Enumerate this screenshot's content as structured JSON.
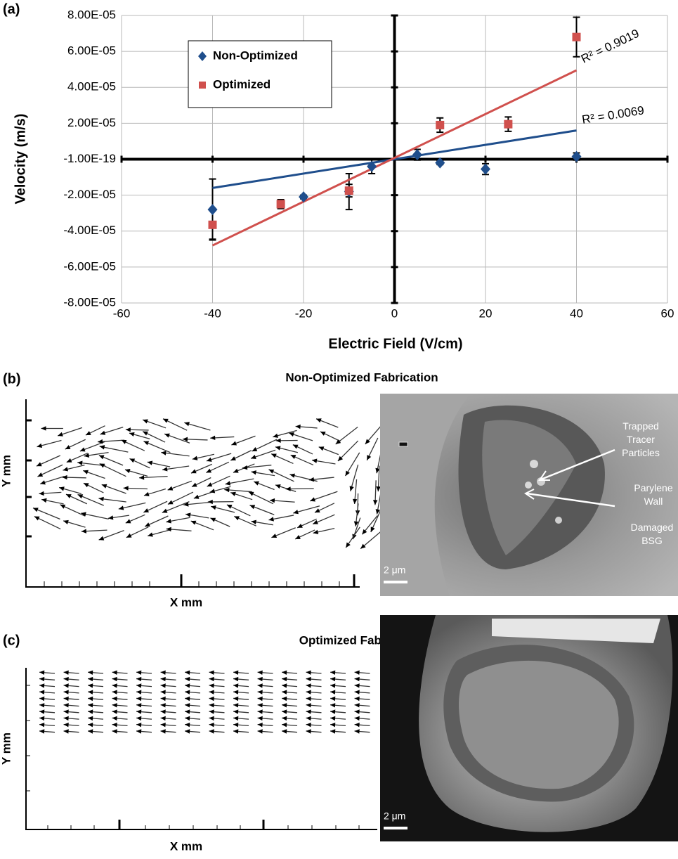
{
  "chart_data": {
    "type": "scatter",
    "panel": "(a)",
    "xlabel": "Electric Field (V/cm)",
    "ylabel": "Velocity (m/s)",
    "xlim": [
      -60,
      60
    ],
    "xticks": [
      -60,
      -40,
      -20,
      0,
      20,
      40,
      60
    ],
    "ylim": [
      -8e-05,
      8e-05
    ],
    "yticks": [
      {
        "value": -8e-05,
        "label": "-8.00E-05"
      },
      {
        "value": -6e-05,
        "label": "-6.00E-05"
      },
      {
        "value": -4e-05,
        "label": "-4.00E-05"
      },
      {
        "value": -2e-05,
        "label": "-2.00E-05"
      },
      {
        "value": -1e-19,
        "label": "-1.00E-19"
      },
      {
        "value": 2e-05,
        "label": "2.00E-05"
      },
      {
        "value": 4e-05,
        "label": "4.00E-05"
      },
      {
        "value": 6e-05,
        "label": "6.00E-05"
      },
      {
        "value": 8e-05,
        "label": "8.00E-05"
      }
    ],
    "grid": true,
    "legend": "upper left",
    "series": [
      {
        "name": "Non-Optimized",
        "color": "#1f4e8c",
        "marker": "diamond",
        "x": [
          -40,
          -20,
          -10,
          -5,
          5,
          10,
          20,
          40
        ],
        "values": [
          -2.8e-05,
          -2.1e-05,
          -1.8e-05,
          -4e-06,
          2.5e-06,
          -2e-06,
          -5.5e-06,
          1.5e-06
        ],
        "errors": [
          1.7e-05,
          1e-06,
          1e-05,
          4e-06,
          3e-06,
          1e-06,
          3e-06,
          2e-06
        ],
        "trend": {
          "x": [
            -40,
            40
          ],
          "values": [
            -1.6e-05,
            1.6e-05
          ],
          "label": "R² = 0.0069"
        }
      },
      {
        "name": "Optimized",
        "color": "#d0504d",
        "marker": "square",
        "x": [
          -40,
          -25,
          -10,
          10,
          25,
          40
        ],
        "values": [
          -3.65e-05,
          -2.5e-05,
          -1.75e-05,
          1.9e-05,
          1.95e-05,
          6.8e-05
        ],
        "errors": [
          8e-06,
          2.5e-06,
          3.5e-06,
          4e-06,
          4e-06,
          1.1e-05
        ],
        "trend": {
          "x": [
            -40,
            40
          ],
          "values": [
            -4.8e-05,
            4.95e-05
          ],
          "label": "R² = 0.9019"
        }
      }
    ]
  },
  "panels": {
    "b": {
      "label": "(b)",
      "title": "Non-Optimized Fabrication",
      "ylabel": "Y mm",
      "xlabel": "X mm",
      "trapped": [
        "Trapped",
        "Tracer",
        "Particles"
      ],
      "wall": [
        "Parylene",
        "Wall"
      ],
      "damaged": [
        "Damaged",
        "BSG"
      ],
      "scale": "2 μm"
    },
    "c": {
      "label": "(c)",
      "title": "Optimized Fabrication",
      "ylabel": "Y mm",
      "xlabel": "X mm",
      "scale": "2 μm"
    }
  }
}
